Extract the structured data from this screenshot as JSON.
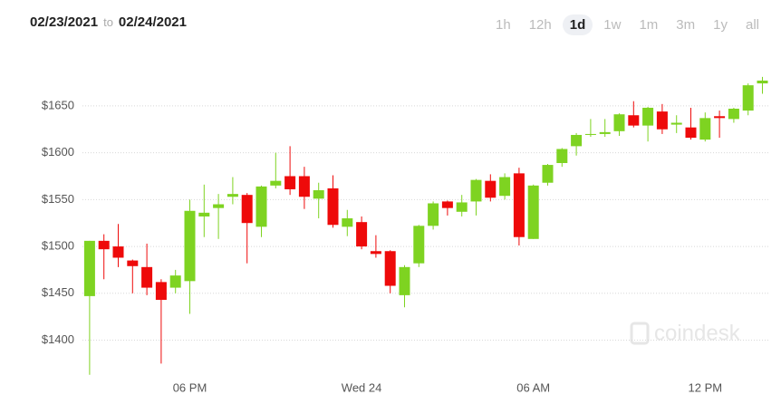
{
  "header": {
    "date_from": "02/23/2021",
    "to": "to",
    "date_to": "02/24/2021"
  },
  "range_buttons": [
    "1h",
    "12h",
    "1d",
    "1w",
    "1m",
    "3m",
    "1y",
    "all"
  ],
  "active_range_index": 2,
  "watermark": "coindesk",
  "chart_data": {
    "type": "candlestick",
    "categories": [
      null,
      null,
      null,
      null,
      null,
      null,
      null,
      "06 PM",
      null,
      null,
      null,
      null,
      null,
      null,
      null,
      null,
      null,
      null,
      null,
      "Wed 24",
      null,
      null,
      null,
      null,
      null,
      null,
      null,
      null,
      null,
      null,
      null,
      "06 AM",
      null,
      null,
      null,
      null,
      null,
      null,
      null,
      null,
      null,
      null,
      null,
      "12 PM",
      null,
      null,
      null,
      null
    ],
    "open": [
      1447,
      1506,
      1500,
      1485,
      1478,
      1462,
      1456,
      1463,
      1532,
      1541,
      1553,
      1555,
      1521,
      1565,
      1575,
      1575,
      1551,
      1562,
      1521,
      1526,
      1495,
      1495,
      1448,
      1482,
      1522,
      1548,
      1537,
      1548,
      1570,
      1554,
      1578,
      1508,
      1568,
      1589,
      1607,
      1619,
      1620,
      1623,
      1640,
      1629,
      1644,
      1630,
      1627,
      1614,
      1639,
      1636,
      1645,
      1674
    ],
    "high": [
      1506,
      1513,
      1524,
      1486,
      1503,
      1465,
      1475,
      1550,
      1566,
      1556,
      1574,
      1557,
      1565,
      1600,
      1607,
      1585,
      1568,
      1576,
      1539,
      1532,
      1512,
      1496,
      1480,
      1523,
      1548,
      1549,
      1555,
      1572,
      1577,
      1578,
      1584,
      1566,
      1588,
      1605,
      1621,
      1636,
      1636,
      1642,
      1655,
      1649,
      1652,
      1640,
      1648,
      1643,
      1645,
      1648,
      1674,
      1681
    ],
    "low": [
      1363,
      1465,
      1478,
      1450,
      1448,
      1375,
      1450,
      1428,
      1510,
      1508,
      1545,
      1482,
      1510,
      1562,
      1555,
      1540,
      1530,
      1520,
      1511,
      1497,
      1488,
      1450,
      1435,
      1478,
      1518,
      1533,
      1532,
      1533,
      1548,
      1550,
      1501,
      1508,
      1565,
      1585,
      1597,
      1617,
      1617,
      1618,
      1627,
      1612,
      1620,
      1621,
      1614,
      1612,
      1616,
      1632,
      1640,
      1663
    ],
    "close": [
      1506,
      1497,
      1488,
      1479,
      1456,
      1443,
      1469,
      1538,
      1536,
      1545,
      1556,
      1525,
      1564,
      1570,
      1561,
      1553,
      1560,
      1523,
      1530,
      1500,
      1492,
      1458,
      1478,
      1522,
      1546,
      1541,
      1547,
      1571,
      1552,
      1574,
      1510,
      1565,
      1587,
      1604,
      1619,
      1620,
      1622,
      1641,
      1629,
      1648,
      1625,
      1632,
      1616,
      1637,
      1637,
      1647,
      1672,
      1677
    ],
    "up_color": "#7ed321",
    "down_color": "#ee0a0a",
    "ylim": [
      1357,
      1705
    ],
    "yticks": [
      {
        "value": 1400,
        "label": "$1400"
      },
      {
        "value": 1450,
        "label": "$1450"
      },
      {
        "value": 1500,
        "label": "$1500"
      },
      {
        "value": 1550,
        "label": "$1550"
      },
      {
        "value": 1600,
        "label": "$1600"
      },
      {
        "value": 1650,
        "label": "$1650"
      }
    ],
    "grid": true
  }
}
